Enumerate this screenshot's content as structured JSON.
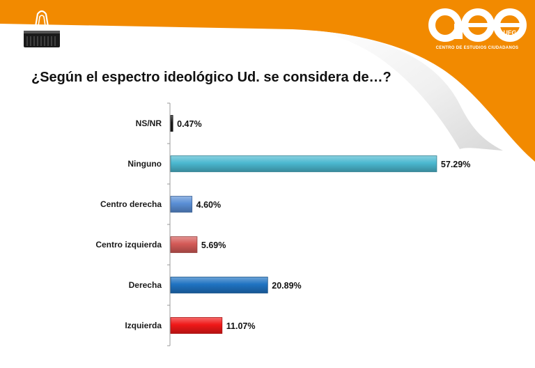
{
  "slide": {
    "title": "¿Según el espectro ideológico Ud. se considera de…?",
    "logo": {
      "name": "aee",
      "sub": "UFG",
      "tagline": "CENTRO DE ESTUDIOS CIUDADANOS"
    },
    "accent_color": "#F28A00",
    "clip_icon": "binder-clip-icon"
  },
  "chart_data": {
    "type": "bar",
    "orientation": "horizontal",
    "categories": [
      "NS/NR",
      "Ninguno",
      "Centro derecha",
      "Centro izquierda",
      "Derecha",
      "Izquierda"
    ],
    "values": [
      0.47,
      57.29,
      4.6,
      5.69,
      20.89,
      11.07
    ],
    "value_labels": [
      "0.47%",
      "57.29%",
      "4.60%",
      "5.69%",
      "20.89%",
      "11.07%"
    ],
    "colors": [
      "#1A1A1A",
      "#4BB8D0",
      "#5A8FD6",
      "#D45A57",
      "#1F73C2",
      "#F01818"
    ],
    "xlim": [
      0,
      60
    ],
    "grid": false,
    "legend": "none"
  }
}
